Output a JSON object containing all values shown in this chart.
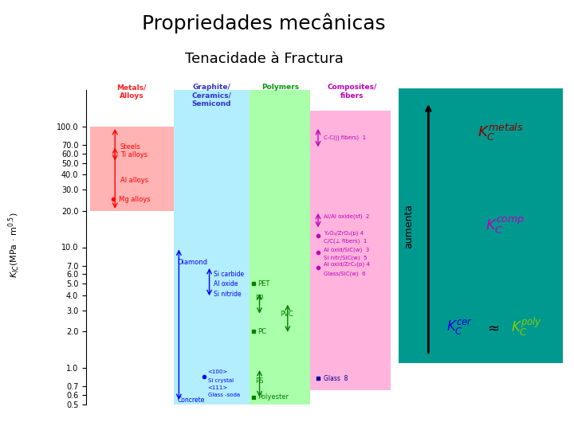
{
  "title": "Propriedades mecânicas",
  "subtitle": "Tenacidade à Fractura",
  "title_fontsize": 18,
  "subtitle_fontsize": 13,
  "bg_color": "#ffffff",
  "teal_box_color": "#009990",
  "metals_box_color": "#FFB3B3",
  "ceramics_box_color": "#B3EEFF",
  "polymers_box_color": "#AAFFAA",
  "composites_box_color": "#FFB3DD",
  "aumenta_text": "aumenta",
  "metals_label_color": "#FF2222",
  "ceramics_label_color": "#3333CC",
  "polymers_label_color": "#009900",
  "composites_label_color": "#BB00BB",
  "kc_metals_color": "#8B0000",
  "kc_comp_color": "#BB00BB",
  "kc_cer_color": "#0000DD",
  "kc_poly_color": "#88CC00"
}
